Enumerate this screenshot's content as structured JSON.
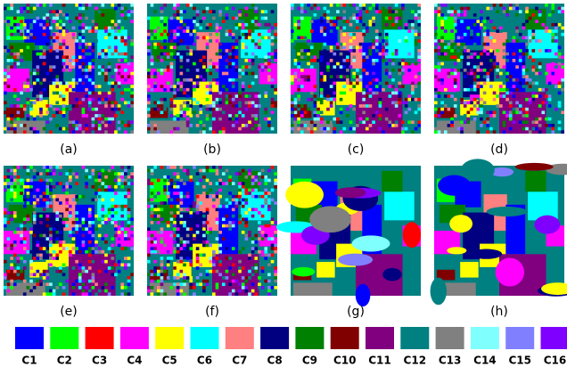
{
  "panels": [
    {
      "label": "(a)"
    },
    {
      "label": "(b)"
    },
    {
      "label": "(c)"
    },
    {
      "label": "(d)"
    },
    {
      "label": "(e)"
    },
    {
      "label": "(f)"
    },
    {
      "label": "(g)"
    },
    {
      "label": "(h)"
    }
  ],
  "legend": [
    {
      "label": "C1",
      "color": "#0000ff"
    },
    {
      "label": "C2",
      "color": "#00ff00"
    },
    {
      "label": "C3",
      "color": "#ff0000"
    },
    {
      "label": "C4",
      "color": "#ff00ff"
    },
    {
      "label": "C5",
      "color": "#ffff00"
    },
    {
      "label": "C6",
      "color": "#00ffff"
    },
    {
      "label": "C7",
      "color": "#ff8080"
    },
    {
      "label": "C8",
      "color": "#000080"
    },
    {
      "label": "C9",
      "color": "#008000"
    },
    {
      "label": "C10",
      "color": "#800000"
    },
    {
      "label": "C11",
      "color": "#800080"
    },
    {
      "label": "C12",
      "color": "#008080"
    },
    {
      "label": "C13",
      "color": "#808080"
    },
    {
      "label": "C14",
      "color": "#80ffff"
    },
    {
      "label": "C15",
      "color": "#8080ff"
    },
    {
      "label": "C16",
      "color": "#8000ff"
    }
  ]
}
